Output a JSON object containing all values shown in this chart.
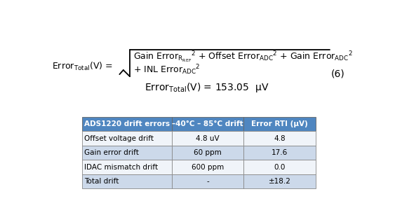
{
  "equation_number": "(6)",
  "table_headers": [
    "ADS1220 drift errors",
    "–40°C – 85°C drift",
    "Error RTI (μV)"
  ],
  "table_rows": [
    [
      "Offset voltage drift",
      "4.8 uV",
      "4.8"
    ],
    [
      "Gain error drift",
      "60 ppm",
      "17.6"
    ],
    [
      "IDAC mismatch drift",
      "600 ppm",
      "0.0"
    ],
    [
      "Total drift",
      "-",
      "±18.2"
    ]
  ],
  "header_bg": "#4f86c0",
  "row_alt_bg": "#ccd9ea",
  "row_plain_bg": "#f0f4f9",
  "table_text_color": "#000000",
  "header_text_color": "#ffffff",
  "bg_color": "#ffffff"
}
